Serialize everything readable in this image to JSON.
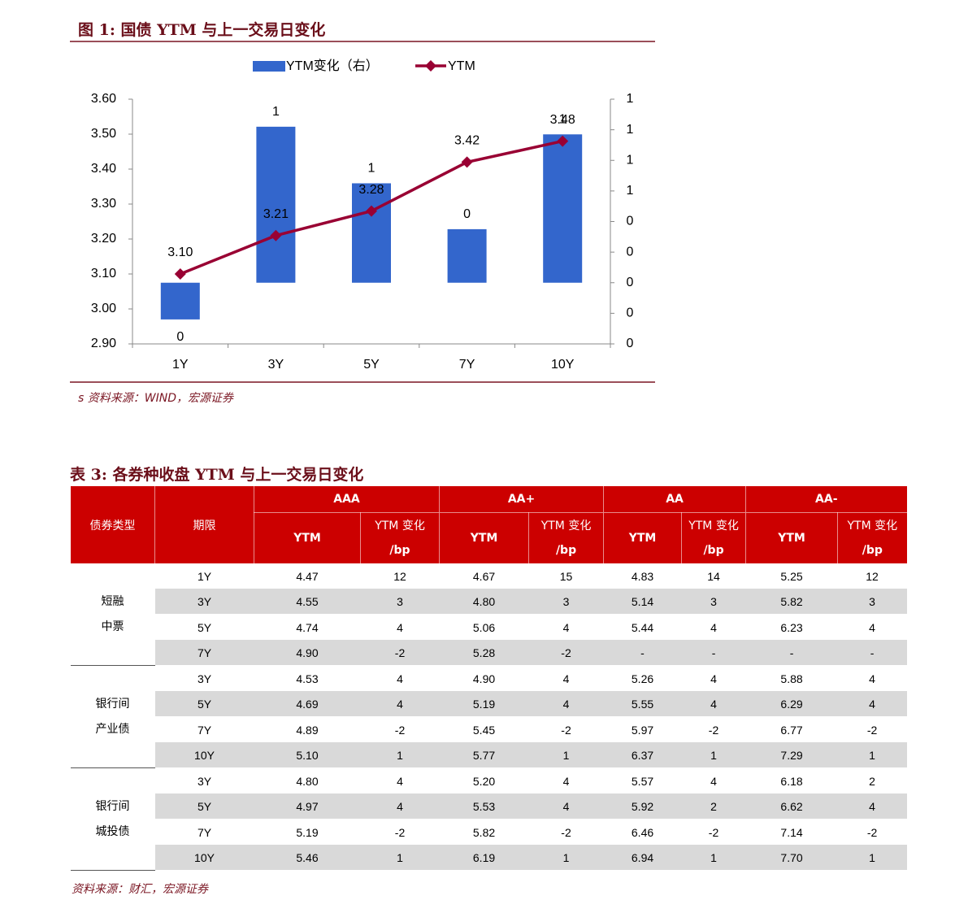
{
  "figure": {
    "title": "图 1:  国债 YTM 与上一交易日变化",
    "source": "s 资料来源：WIND，宏源证券"
  },
  "chart_data": {
    "type": "combo",
    "categories": [
      "1Y",
      "3Y",
      "5Y",
      "7Y",
      "10Y"
    ],
    "series": [
      {
        "name": "YTM变化（右）",
        "type": "bar",
        "axis": "y2",
        "color": "#3366cc",
        "values": [
          -0.24,
          1.02,
          0.65,
          0.35,
          0.97
        ],
        "value_labels": [
          "0",
          "1",
          "1",
          "0",
          "1"
        ]
      },
      {
        "name": "YTM",
        "type": "line",
        "color": "#990033",
        "values": [
          3.1,
          3.21,
          3.28,
          3.42,
          3.48
        ],
        "value_labels": [
          "3.10",
          "3.21",
          "3.28",
          "3.42",
          "3.48"
        ]
      }
    ],
    "ylim": [
      2.9,
      3.6
    ],
    "yticks": [
      {
        "value": 2.9,
        "label": "2.90"
      },
      {
        "value": 3.0,
        "label": "3.00"
      },
      {
        "value": 3.1,
        "label": "3.10"
      },
      {
        "value": 3.2,
        "label": "3.20"
      },
      {
        "value": 3.3,
        "label": "3.30"
      },
      {
        "value": 3.4,
        "label": "3.40"
      },
      {
        "value": 3.5,
        "label": "3.50"
      },
      {
        "value": 3.6,
        "label": "3.60"
      }
    ],
    "y2lim": [
      -0.4,
      1.2
    ],
    "y2ticks": [
      {
        "value": -0.4,
        "label": "0"
      },
      {
        "value": -0.2,
        "label": "0"
      },
      0,
      {
        "value": 0.2,
        "label": "0"
      },
      {
        "value": 0.4,
        "label": "0"
      },
      {
        "value": 0.6,
        "label": "1"
      },
      {
        "value": 0.8,
        "label": "1"
      },
      {
        "value": 1.0,
        "label": "1"
      },
      {
        "value": 1.2,
        "label": "1"
      }
    ],
    "legend": "top"
  },
  "table": {
    "title": "表 3:  各券种收盘 YTM 与上一交易日变化",
    "source": "资料来源：财汇，宏源证券",
    "header": {
      "type": "债券类型",
      "term": "期限"
    },
    "groups": [
      {
        "name": "AAA",
        "ytm": "YTM",
        "change": "YTM 变化",
        "unit": "/bp"
      },
      {
        "name": "AA+",
        "ytm": "YTM",
        "change": "YTM 变化",
        "unit": "/bp"
      },
      {
        "name": "AA",
        "ytm": "YTM",
        "change": "YTM 变化",
        "unit": "/bp"
      },
      {
        "name": "AA-",
        "ytm": "YTM",
        "change": "YTM 变化",
        "unit": "/bp"
      }
    ],
    "sections": [
      {
        "type": [
          "短融",
          "中票"
        ],
        "rows": [
          [
            "1Y",
            "4.47",
            "12",
            "4.67",
            "15",
            "4.83",
            "14",
            "5.25",
            "12"
          ],
          [
            "3Y",
            "4.55",
            "3",
            "4.80",
            "3",
            "5.14",
            "3",
            "5.82",
            "3"
          ],
          [
            "5Y",
            "4.74",
            "4",
            "5.06",
            "4",
            "5.44",
            "4",
            "6.23",
            "4"
          ],
          [
            "7Y",
            "4.90",
            "-2",
            "5.28",
            "-2",
            "-",
            "-",
            "-",
            "-"
          ]
        ]
      },
      {
        "type": [
          "银行间",
          "产业债"
        ],
        "rows": [
          [
            "3Y",
            "4.53",
            "4",
            "4.90",
            "4",
            "5.26",
            "4",
            "5.88",
            "4"
          ],
          [
            "5Y",
            "4.69",
            "4",
            "5.19",
            "4",
            "5.55",
            "4",
            "6.29",
            "4"
          ],
          [
            "7Y",
            "4.89",
            "-2",
            "5.45",
            "-2",
            "5.97",
            "-2",
            "6.77",
            "-2"
          ],
          [
            "10Y",
            "5.10",
            "1",
            "5.77",
            "1",
            "6.37",
            "1",
            "7.29",
            "1"
          ]
        ]
      },
      {
        "type": [
          "银行间",
          "城投债"
        ],
        "rows": [
          [
            "3Y",
            "4.80",
            "4",
            "5.20",
            "4",
            "5.57",
            "4",
            "6.18",
            "2"
          ],
          [
            "5Y",
            "4.97",
            "4",
            "5.53",
            "4",
            "5.92",
            "2",
            "6.62",
            "4"
          ],
          [
            "7Y",
            "5.19",
            "-2",
            "5.82",
            "-2",
            "6.46",
            "-2",
            "7.14",
            "-2"
          ],
          [
            "10Y",
            "5.46",
            "1",
            "6.19",
            "1",
            "6.94",
            "1",
            "7.70",
            "1"
          ]
        ]
      }
    ]
  }
}
